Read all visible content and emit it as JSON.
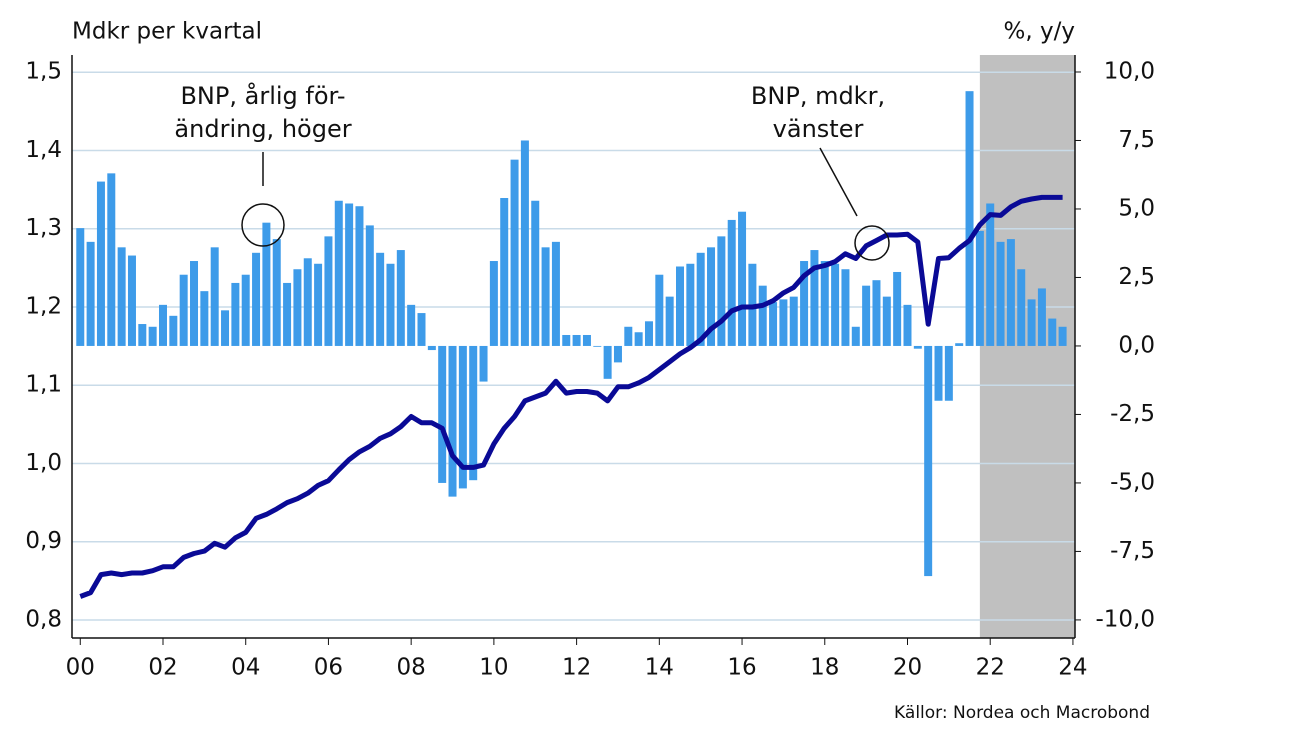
{
  "chart_data": {
    "type": "bar-line",
    "y_label": "Mdkr per kvartal",
    "y2_label": "%, y/y",
    "source": "Källor: Nordea och Macrobond",
    "annotations": [
      [
        "BNP, årlig för-",
        "ändring, höger"
      ],
      [
        "BNP, mdkr,",
        "vänster"
      ]
    ],
    "x": [
      0,
      0.25,
      0.5,
      0.75,
      1,
      1.25,
      1.5,
      1.75,
      2,
      2.25,
      2.5,
      2.75,
      3,
      3.25,
      3.5,
      3.75,
      4,
      4.25,
      4.5,
      4.75,
      5,
      5.25,
      5.5,
      5.75,
      6,
      6.25,
      6.5,
      6.75,
      7,
      7.25,
      7.5,
      7.75,
      8,
      8.25,
      8.5,
      8.75,
      9,
      9.25,
      9.5,
      9.75,
      10,
      10.25,
      10.5,
      10.75,
      11,
      11.25,
      11.5,
      11.75,
      12,
      12.25,
      12.5,
      12.75,
      13,
      13.25,
      13.5,
      13.75,
      14,
      14.25,
      14.5,
      14.75,
      15,
      15.25,
      15.5,
      15.75,
      16,
      16.25,
      16.5,
      16.75,
      17,
      17.25,
      17.5,
      17.75,
      18,
      18.25,
      18.5,
      18.75,
      19,
      19.25,
      19.5,
      19.75,
      20,
      20.25,
      20.5,
      20.75,
      21,
      21.25,
      21.5,
      21.75,
      22,
      22.25,
      22.5,
      22.75,
      23,
      23.25,
      23.5,
      23.75
    ],
    "series": [
      {
        "name": "BNP, årlig förändring",
        "axis": "y2",
        "color": "#3d9be9",
        "values": [
          4.3,
          3.8,
          6.0,
          6.3,
          3.6,
          3.3,
          0.8,
          0.7,
          1.5,
          1.1,
          2.6,
          3.1,
          2.0,
          3.6,
          1.3,
          2.3,
          2.6,
          3.4,
          4.5,
          3.9,
          2.3,
          2.8,
          3.2,
          3.0,
          4.0,
          5.3,
          5.2,
          5.1,
          4.4,
          3.4,
          3.0,
          3.5,
          1.5,
          1.2,
          -0.15,
          -5.0,
          -5.5,
          -5.2,
          -4.9,
          -1.3,
          3.1,
          5.4,
          6.8,
          7.5,
          5.3,
          3.6,
          3.8,
          0.4,
          0.4,
          0.4,
          0.0,
          -1.2,
          -0.6,
          0.7,
          0.5,
          0.9,
          2.6,
          1.8,
          2.9,
          3.0,
          3.4,
          3.6,
          4.0,
          4.6,
          4.9,
          3.0,
          2.2,
          1.6,
          1.7,
          1.8,
          3.1,
          3.5,
          3.1,
          3.0,
          2.8,
          0.7,
          2.2,
          2.4,
          1.8,
          2.7,
          1.5,
          -0.1,
          -8.4,
          -2.0,
          -2.0,
          0.1,
          9.3,
          4.2,
          5.2,
          3.8,
          3.9,
          2.8,
          1.7,
          2.1,
          1.0,
          0.7
        ]
      },
      {
        "name": "BNP, mdkr",
        "axis": "y",
        "color": "#0a0a96",
        "values": [
          0.83,
          0.835,
          0.858,
          0.86,
          0.858,
          0.86,
          0.86,
          0.863,
          0.868,
          0.868,
          0.88,
          0.885,
          0.888,
          0.898,
          0.893,
          0.905,
          0.912,
          0.93,
          0.935,
          0.942,
          0.95,
          0.955,
          0.962,
          0.972,
          0.978,
          0.992,
          1.005,
          1.015,
          1.022,
          1.032,
          1.038,
          1.047,
          1.06,
          1.052,
          1.052,
          1.045,
          1.01,
          0.995,
          0.995,
          0.998,
          1.025,
          1.045,
          1.06,
          1.08,
          1.085,
          1.09,
          1.105,
          1.09,
          1.092,
          1.092,
          1.09,
          1.08,
          1.098,
          1.098,
          1.103,
          1.11,
          1.12,
          1.13,
          1.14,
          1.148,
          1.158,
          1.172,
          1.182,
          1.195,
          1.2,
          1.2,
          1.202,
          1.208,
          1.218,
          1.225,
          1.24,
          1.25,
          1.253,
          1.258,
          1.268,
          1.262,
          1.278,
          1.285,
          1.292,
          1.292,
          1.293,
          1.283,
          1.178,
          1.262,
          1.263,
          1.275,
          1.285,
          1.305,
          1.318,
          1.317,
          1.328,
          1.335,
          1.338,
          1.34,
          1.34,
          1.34
        ]
      }
    ],
    "shaded_x": [
      21.75,
      24.05
    ],
    "shade_color": "#c0c0c0",
    "grid": true,
    "xlim": [
      -0.2,
      24.05
    ],
    "xticks": [
      {
        "value": 0,
        "label": "00"
      },
      {
        "value": 2,
        "label": "02"
      },
      {
        "value": 4,
        "label": "04"
      },
      {
        "value": 6,
        "label": "06"
      },
      {
        "value": 8,
        "label": "08"
      },
      10,
      12,
      14,
      16,
      18,
      20,
      22,
      24
    ],
    "ylim": [
      0.777,
      1.522
    ],
    "yticks": [
      {
        "value": 0.8,
        "label": "0,8"
      },
      {
        "value": 0.9,
        "label": "0,9"
      },
      {
        "value": 1.0,
        "label": "1,0"
      },
      {
        "value": 1.1,
        "label": "1,1"
      },
      {
        "value": 1.2,
        "label": "1,2"
      },
      {
        "value": 1.3,
        "label": "1,3"
      },
      {
        "value": 1.4,
        "label": "1,4"
      },
      {
        "value": 1.5,
        "label": "1,5"
      }
    ],
    "y2lim": [
      -10.66,
      10.62
    ],
    "y2ticks": [
      {
        "value": -10,
        "label": "-10,0"
      },
      {
        "value": -7.5,
        "label": "-7,5"
      },
      {
        "value": -5,
        "label": "-5,0"
      },
      {
        "value": -2.5,
        "label": "-2,5"
      },
      {
        "value": 0,
        "label": "0,0"
      },
      {
        "value": 2.5,
        "label": "2,5"
      },
      {
        "value": 5,
        "label": "5,0"
      },
      {
        "value": 7.5,
        "label": "7,5"
      },
      {
        "value": 10,
        "label": "10,0"
      }
    ]
  }
}
